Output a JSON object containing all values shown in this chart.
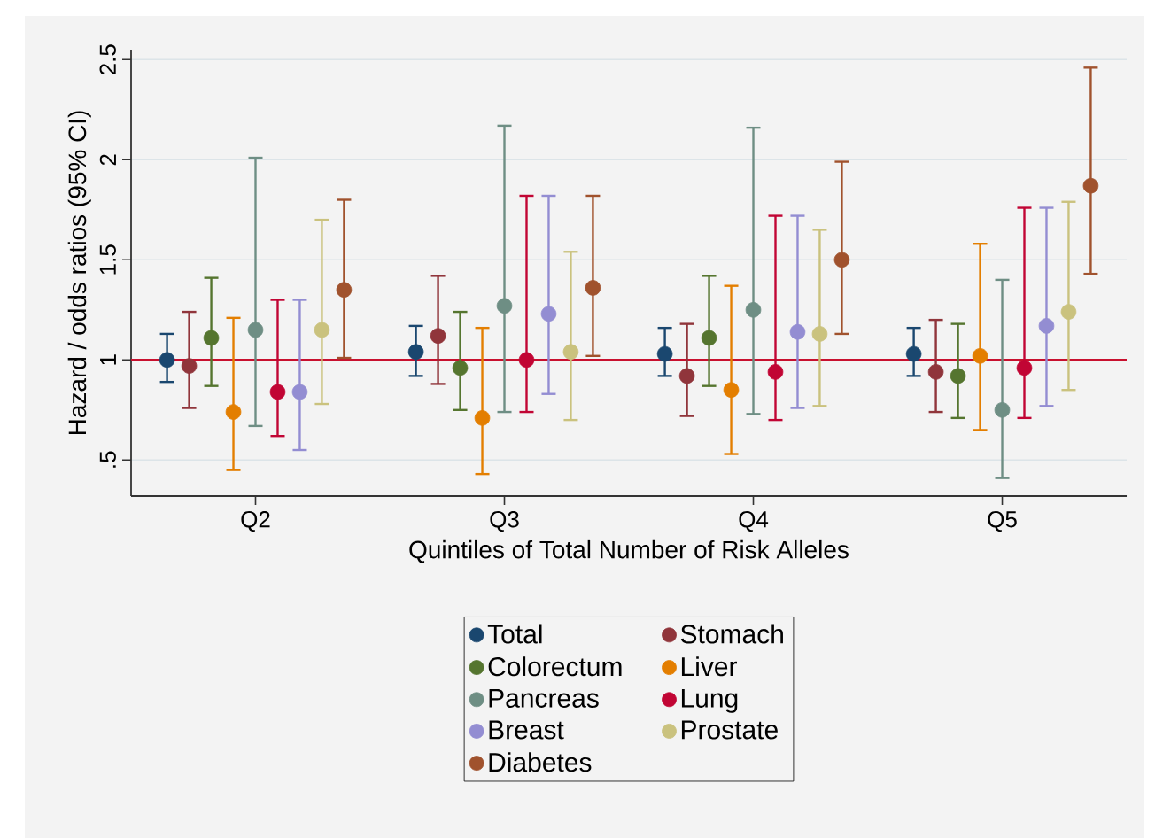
{
  "chart_data": {
    "type": "scatter",
    "xlabel": "Quintiles of Total Number of Risk Alleles",
    "ylabel": "Hazard / odds ratios (95% CI)",
    "categories": [
      "Q2",
      "Q3",
      "Q4",
      "Q5"
    ],
    "ylim": [
      0.32,
      2.55
    ],
    "yticks": [
      {
        "value": 0.5,
        "label": ".5"
      },
      1,
      1.5,
      2,
      2.5
    ],
    "grid": "y",
    "legend": "bottom",
    "marker": "circle",
    "ref_lines": [
      {
        "axis": "y",
        "value": 1,
        "color": "#c8102e"
      }
    ],
    "series": [
      {
        "name": "Total",
        "color": "#1a476f",
        "values": [
          1.0,
          1.04,
          1.03,
          1.03
        ],
        "errors": [
          [
            0.89,
            1.13
          ],
          [
            0.92,
            1.17
          ],
          [
            0.92,
            1.16
          ],
          [
            0.92,
            1.16
          ]
        ]
      },
      {
        "name": "Stomach",
        "color": "#90353b",
        "values": [
          0.97,
          1.12,
          0.92,
          0.94
        ],
        "errors": [
          [
            0.76,
            1.24
          ],
          [
            0.88,
            1.42
          ],
          [
            0.72,
            1.18
          ],
          [
            0.74,
            1.2
          ]
        ]
      },
      {
        "name": "Colorectum",
        "color": "#55752f",
        "values": [
          1.11,
          0.96,
          1.11,
          0.92
        ],
        "errors": [
          [
            0.87,
            1.41
          ],
          [
            0.75,
            1.24
          ],
          [
            0.87,
            1.42
          ],
          [
            0.71,
            1.18
          ]
        ]
      },
      {
        "name": "Liver",
        "color": "#e37e00",
        "values": [
          0.74,
          0.71,
          0.85,
          1.02
        ],
        "errors": [
          [
            0.45,
            1.21
          ],
          [
            0.43,
            1.16
          ],
          [
            0.53,
            1.37
          ],
          [
            0.65,
            1.58
          ]
        ]
      },
      {
        "name": "Pancreas",
        "color": "#6e8e84",
        "values": [
          1.15,
          1.27,
          1.25,
          0.75
        ],
        "errors": [
          [
            0.67,
            2.01
          ],
          [
            0.74,
            2.17
          ],
          [
            0.73,
            2.16
          ],
          [
            0.41,
            1.4
          ]
        ]
      },
      {
        "name": "Lung",
        "color": "#c10534",
        "values": [
          0.84,
          1.0,
          0.94,
          0.96
        ],
        "errors": [
          [
            0.62,
            1.3
          ],
          [
            0.74,
            1.82
          ],
          [
            0.7,
            1.72
          ],
          [
            0.71,
            1.76
          ]
        ]
      },
      {
        "name": "Breast",
        "color": "#938dd2",
        "values": [
          0.84,
          1.23,
          1.14,
          1.17
        ],
        "errors": [
          [
            0.55,
            1.3
          ],
          [
            0.83,
            1.82
          ],
          [
            0.76,
            1.72
          ],
          [
            0.77,
            1.76
          ]
        ]
      },
      {
        "name": "Prostate",
        "color": "#cac27e",
        "values": [
          1.15,
          1.04,
          1.13,
          1.24
        ],
        "errors": [
          [
            0.78,
            1.7
          ],
          [
            0.7,
            1.54
          ],
          [
            0.77,
            1.65
          ],
          [
            0.85,
            1.79
          ]
        ]
      },
      {
        "name": "Diabetes",
        "color": "#a0522d",
        "values": [
          1.35,
          1.36,
          1.5,
          1.87
        ],
        "errors": [
          [
            1.01,
            1.8
          ],
          [
            1.02,
            1.82
          ],
          [
            1.13,
            1.99
          ],
          [
            1.43,
            2.46
          ]
        ]
      }
    ]
  }
}
